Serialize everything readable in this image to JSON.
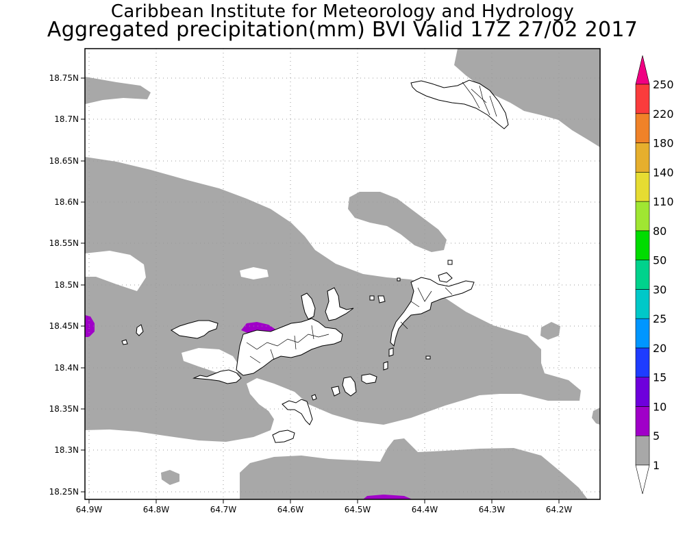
{
  "header": {
    "line1": "Caribbean Institute for Meteorology and Hydrology",
    "line2": "Aggregated precipitation(mm) BVI Valid 17Z 27/02 2017"
  },
  "map": {
    "lat_ticks": [
      "18.75N",
      "18.7N",
      "18.65N",
      "18.6N",
      "18.55N",
      "18.5N",
      "18.45N",
      "18.4N",
      "18.35N",
      "18.3N",
      "18.25N"
    ],
    "lon_ticks": [
      "64.9W",
      "64.8W",
      "64.7W",
      "64.6W",
      "64.5W",
      "64.4W",
      "64.3W",
      "64.2W"
    ],
    "lon_range": [
      -64.91,
      -64.16
    ],
    "lat_range": [
      18.245,
      18.79
    ],
    "gridlines": "dotted",
    "fields": [
      {
        "name": "1-5 mm",
        "color": "#a8a8a8"
      },
      {
        "name": "5-10 mm",
        "color": "#a000c8"
      }
    ],
    "islands": "British Virgin Islands and surrounding islands (outlined)"
  },
  "colorbar": {
    "levels": [
      "1",
      "5",
      "10",
      "15",
      "20",
      "25",
      "30",
      "50",
      "80",
      "110",
      "140",
      "180",
      "220",
      "250"
    ],
    "colors": [
      "#ffffff",
      "#a8a8a8",
      "#a000c8",
      "#6e00dc",
      "#1e3cff",
      "#0096ff",
      "#00c8c8",
      "#00d28c",
      "#00dc00",
      "#a0e632",
      "#e6dc32",
      "#e6af2d",
      "#f08228",
      "#fa3c3c",
      "#f00082"
    ]
  }
}
